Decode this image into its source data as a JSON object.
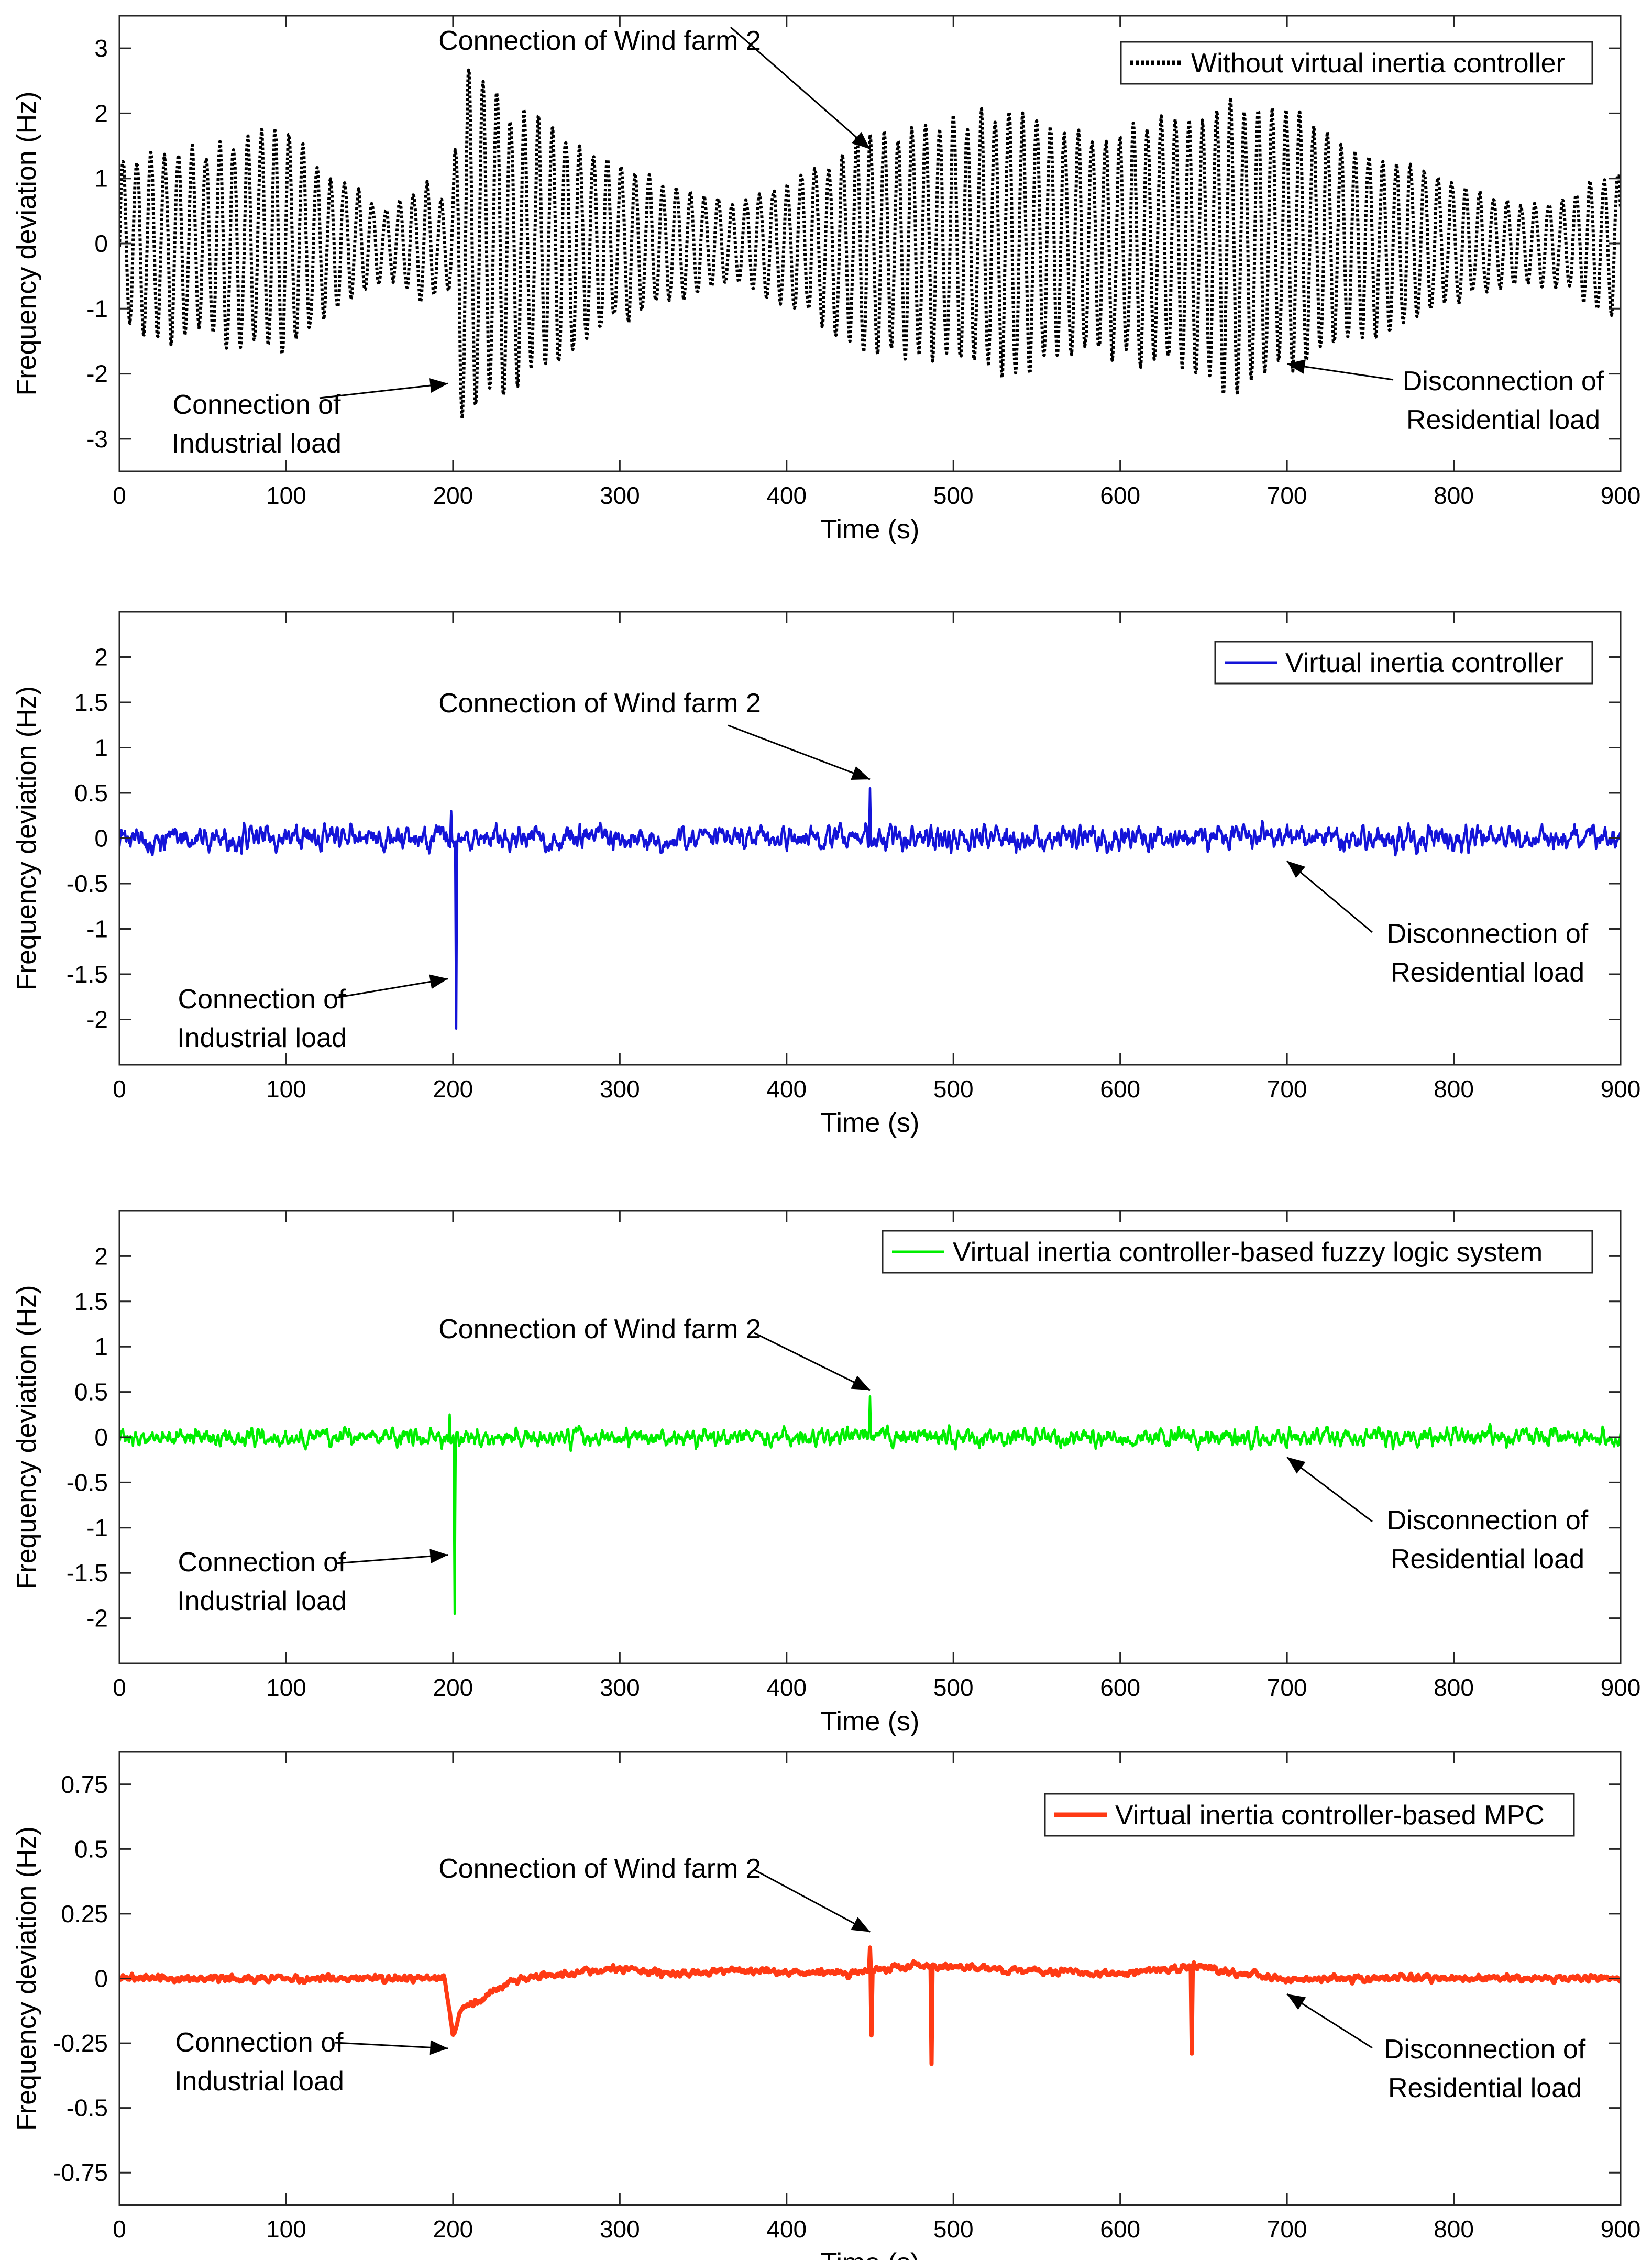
{
  "chart_data": [
    {
      "type": "line",
      "xlabel": "Time (s)",
      "ylabel": "Frequency deviation (Hz)",
      "xlim": [
        0,
        900
      ],
      "ylim": [
        -3.5,
        3.5
      ],
      "xticks": [
        0,
        100,
        200,
        300,
        400,
        500,
        600,
        700,
        800,
        900
      ],
      "yticks": [
        -3,
        -2,
        -1,
        0,
        1,
        2,
        3
      ],
      "ytick_labels": [
        "-3",
        "-2",
        "-1",
        "0",
        "1",
        "2",
        "3"
      ],
      "legend": {
        "location": "top-right",
        "entries": [
          "Without virtual inertia controller"
        ]
      },
      "series": [
        {
          "name": "Without virtual inertia controller",
          "color": "#000000",
          "style": "dotted",
          "envelope_x": [
            0,
            20,
            50,
            95,
            130,
            160,
            185,
            195,
            200,
            205,
            220,
            260,
            300,
            340,
            370,
            400,
            430,
            450,
            470,
            500,
            540,
            580,
            620,
            665,
            700,
            740,
            780,
            810,
            840,
            870,
            900
          ],
          "envelope_amp": [
            1.2,
            1.4,
            1.3,
            1.7,
            1.0,
            0.5,
            0.9,
            0.6,
            1.0,
            2.6,
            2.3,
            1.7,
            1.2,
            0.8,
            0.6,
            0.9,
            1.3,
            1.6,
            1.7,
            1.8,
            2.0,
            1.6,
            1.8,
            2.1,
            1.9,
            1.4,
            1.1,
            0.8,
            0.6,
            0.7,
            1.2
          ],
          "oscillation_period_s": 8.3
        }
      ],
      "annotations": [
        {
          "lines": [
            "Connection of Wind farm 2"
          ],
          "x": 450,
          "y": 1.45
        },
        {
          "lines": [
            "Connection of",
            "Industrial load"
          ],
          "x": 197,
          "y": -2.15
        },
        {
          "lines": [
            "Disconnection of",
            "Residential load"
          ],
          "x": 700,
          "y": -1.85
        }
      ]
    },
    {
      "type": "line",
      "xlabel": "Time (s)",
      "ylabel": "Frequency deviation (Hz)",
      "xlim": [
        0,
        900
      ],
      "ylim": [
        -2.5,
        2.5
      ],
      "xticks": [
        0,
        100,
        200,
        300,
        400,
        500,
        600,
        700,
        800,
        900
      ],
      "yticks": [
        -2,
        -1.5,
        -1,
        -0.5,
        0,
        0.5,
        1,
        1.5,
        2
      ],
      "ytick_labels": [
        "-2",
        "-1.5",
        "-1",
        "-0.5",
        "0",
        "0.5",
        "1",
        "1.5",
        "2"
      ],
      "legend": {
        "location": "top-right",
        "entries": [
          "Virtual inertia controller"
        ]
      },
      "series": [
        {
          "name": "Virtual inertia controller",
          "color": "#1414d8",
          "style": "solid",
          "noise_amplitude": 0.15,
          "events": [
            {
              "x": 199,
              "value": 0.3
            },
            {
              "x": 202,
              "value": -2.1
            },
            {
              "x": 450,
              "value": 0.55
            }
          ]
        }
      ],
      "annotations": [
        {
          "lines": [
            "Connection of Wind farm 2"
          ],
          "x": 450,
          "y": 0.65
        },
        {
          "lines": [
            "Connection of",
            "Industrial load"
          ],
          "x": 197,
          "y": -1.55
        },
        {
          "lines": [
            "Disconnection of",
            "Residential load"
          ],
          "x": 700,
          "y": -0.25
        }
      ]
    },
    {
      "type": "line",
      "xlabel": "Time (s)",
      "ylabel": "Frequency deviation (Hz)",
      "xlim": [
        0,
        900
      ],
      "ylim": [
        -2.5,
        2.5
      ],
      "xticks": [
        0,
        100,
        200,
        300,
        400,
        500,
        600,
        700,
        800,
        900
      ],
      "yticks": [
        -2,
        -1.5,
        -1,
        -0.5,
        0,
        0.5,
        1,
        1.5,
        2
      ],
      "ytick_labels": [
        "-2",
        "-1.5",
        "-1",
        "-0.5",
        "0",
        "0.5",
        "1",
        "1.5",
        "2"
      ],
      "legend": {
        "location": "top-right",
        "entries": [
          "Virtual inertia controller-based fuzzy logic system"
        ]
      },
      "series": [
        {
          "name": "Virtual inertia controller-based fuzzy logic system",
          "color": "#00ee00",
          "style": "solid",
          "noise_amplitude": 0.11,
          "events": [
            {
              "x": 198,
              "value": 0.25
            },
            {
              "x": 201,
              "value": -1.95
            },
            {
              "x": 450,
              "value": 0.45
            }
          ]
        }
      ],
      "annotations": [
        {
          "lines": [
            "Connection of Wind farm 2"
          ],
          "x": 450,
          "y": 0.52
        },
        {
          "lines": [
            "Connection of",
            "Industrial load"
          ],
          "x": 197,
          "y": -1.3
        },
        {
          "lines": [
            "Disconnection of",
            "Residential load"
          ],
          "x": 700,
          "y": -0.22
        }
      ]
    },
    {
      "type": "line",
      "xlabel": "Time (s)",
      "ylabel": "Frequency deviation (Hz)",
      "xlim": [
        0,
        900
      ],
      "ylim": [
        -0.875,
        0.875
      ],
      "xticks": [
        0,
        100,
        200,
        300,
        400,
        500,
        600,
        700,
        800,
        900
      ],
      "yticks": [
        -0.75,
        -0.5,
        -0.25,
        0,
        0.25,
        0.5,
        0.75
      ],
      "ytick_labels": [
        "-0.75",
        "-0.5",
        "-0.25",
        "0",
        "0.25",
        "0.5",
        "0.75"
      ],
      "legend": {
        "location": "top-right",
        "entries": [
          "Virtual inertia controller-based MPC"
        ]
      },
      "series": [
        {
          "name": "Virtual inertia controller-based MPC",
          "color": "#ff3a14",
          "style": "solid",
          "noise_amplitude": 0.015,
          "baseline_x": [
            0,
            195,
            200,
            205,
            240,
            300,
            330,
            380,
            440,
            470,
            600,
            650,
            660,
            700,
            900
          ],
          "baseline_y": [
            0.0,
            0.0,
            -0.22,
            -0.12,
            0.0,
            0.04,
            0.02,
            0.03,
            0.02,
            0.05,
            0.02,
            0.05,
            0.03,
            0.0,
            0.0
          ],
          "events": [
            {
              "x": 450,
              "value": 0.12
            },
            {
              "x": 451,
              "value": -0.22
            },
            {
              "x": 487,
              "value": -0.33
            },
            {
              "x": 643,
              "value": -0.29
            }
          ]
        }
      ],
      "annotations": [
        {
          "lines": [
            "Connection of Wind farm 2"
          ],
          "x": 450,
          "y": 0.18
        },
        {
          "lines": [
            "Connection of",
            "Industrial load"
          ],
          "x": 197,
          "y": -0.27
        },
        {
          "lines": [
            "Disconnection of",
            "Residential load"
          ],
          "x": 700,
          "y": -0.06
        }
      ]
    }
  ]
}
